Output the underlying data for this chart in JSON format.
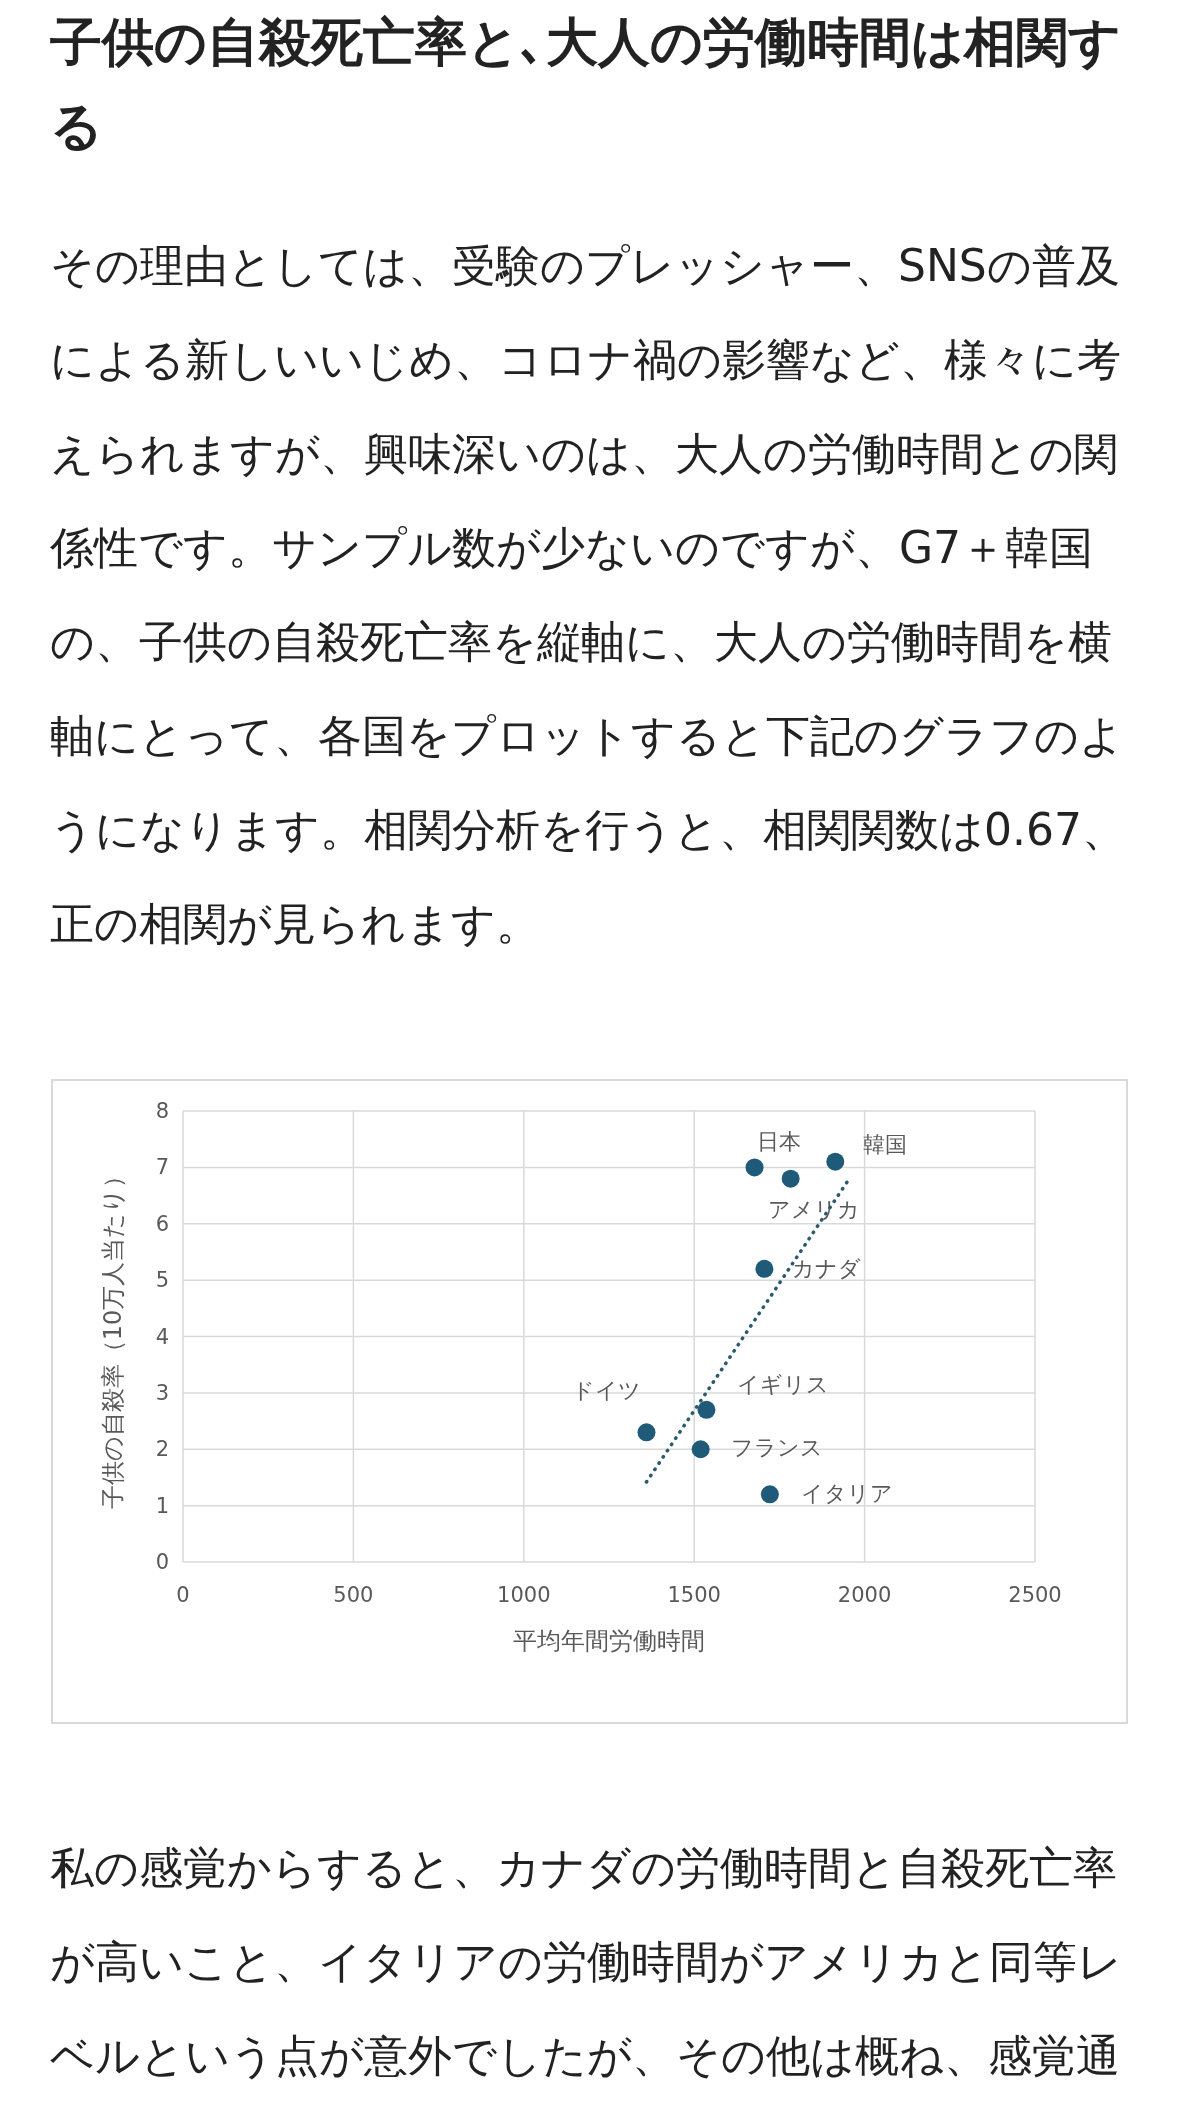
{
  "chart_data": {
    "type": "scatter",
    "title": "子供の自殺死亡率と､大人の労働時間は相関する",
    "subtitle": "その理由としては、受験のプレッシャー、SNSの普及による新しいいじめ、コロナ禍の影響など、様々に考えられますが、興味深いのは、大人の労働時間との関係性です。サンプル数が少ないのですが、G7＋韓国の、子供の自殺死亡率を縦軸に、大人の労働時間を横軸にとって、各国をプロットすると下記のグラフのようになります。相関分析を行うと、相関関数は0.67、正の相関が見られます。",
    "xlabel": "平均年間労働時間",
    "ylabel": "子供の自殺率（10万人当たり）",
    "xlim": [
      0,
      2500
    ],
    "xticks": [
      0,
      500,
      1000,
      1500,
      2000,
      2500
    ],
    "ylim": [
      0,
      8
    ],
    "yticks": [
      0,
      1,
      2,
      3,
      4,
      5,
      6,
      7,
      8
    ],
    "grid": true,
    "marker": "circle",
    "series": [
      {
        "name": "日本",
        "color": "#1f5a78",
        "x": [
          1677
        ],
        "values": [
          7.0
        ]
      },
      {
        "name": "韓国",
        "color": "#1f5a78",
        "x": [
          1914
        ],
        "values": [
          7.1
        ]
      },
      {
        "name": "アメリカ",
        "color": "#1f5a78",
        "x": [
          1783
        ],
        "values": [
          6.8
        ]
      },
      {
        "name": "カナダ",
        "color": "#1f5a78",
        "x": [
          1706
        ],
        "values": [
          5.2
        ]
      },
      {
        "name": "イギリス",
        "color": "#1f5a78",
        "x": [
          1536
        ],
        "values": [
          2.7
        ]
      },
      {
        "name": "ドイツ",
        "color": "#1f5a78",
        "x": [
          1360
        ],
        "values": [
          2.3
        ]
      },
      {
        "name": "フランス",
        "color": "#1f5a78",
        "x": [
          1519
        ],
        "values": [
          2.0
        ]
      },
      {
        "name": "イタリア",
        "color": "#1f5a78",
        "x": [
          1722
        ],
        "values": [
          1.2
        ]
      },
      {
        "type": "line",
        "line_style": "dotted",
        "marker": "none",
        "color": "#2b5a6e",
        "x": [
          1360,
          1953
        ],
        "values": [
          1.42,
          6.78
        ]
      }
    ],
    "annotations": [
      "私の感覚からすると、カナダの労働時間と自殺死亡率が高いこと、イタリアの労働時間がアメリカと同等レベルという点が意外でしたが、その他は概ね、感覚通"
    ]
  }
}
